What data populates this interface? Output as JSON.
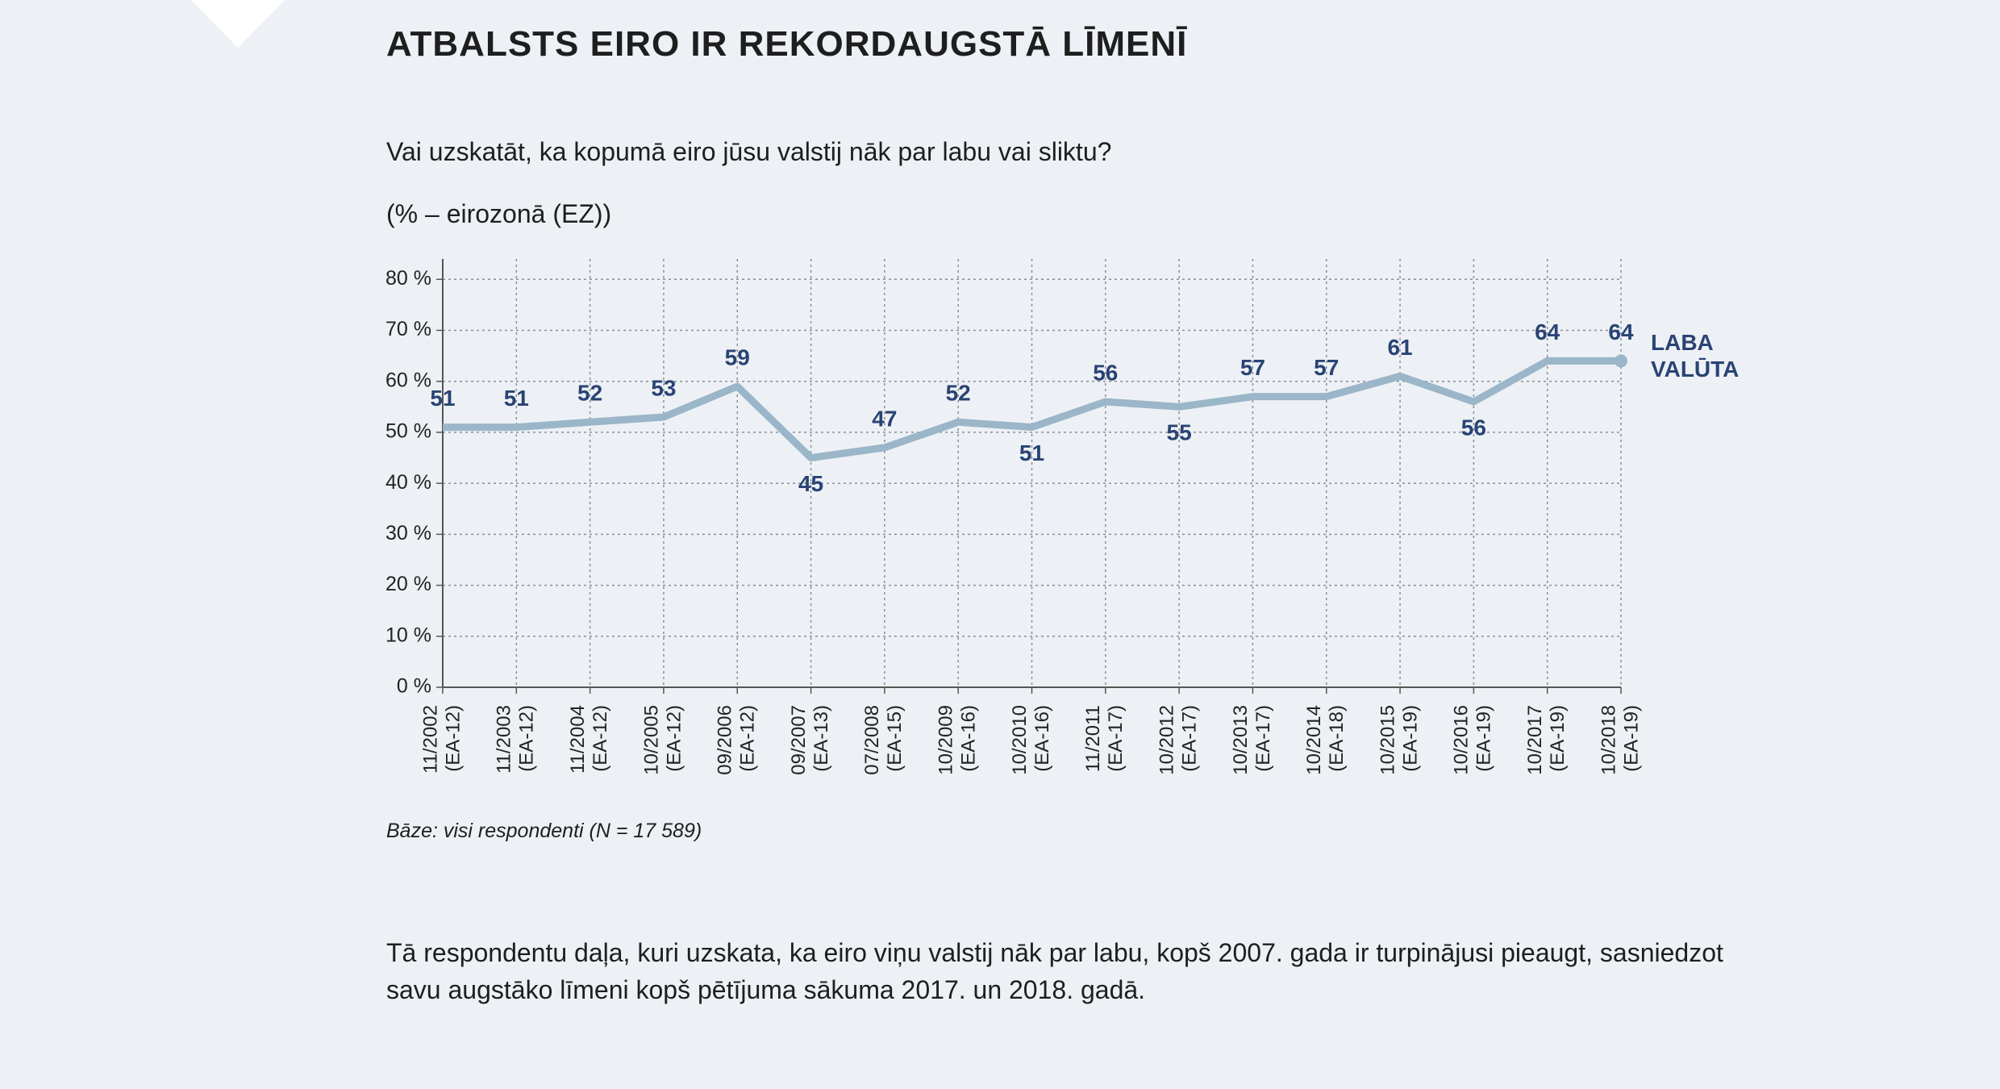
{
  "chart_data": {
    "type": "line",
    "title": "ATBALSTS EIRO IR REKORDAUGSTĀ LĪMENĪ",
    "subtitle": "Vai uzskatāt, ka kopumā eiro jūsu valstij nāk par labu vai sliktu?",
    "y_label": "(% – eirozonā (EZ))",
    "categories": [
      "11/2002",
      "11/2003",
      "11/2004",
      "10/2005",
      "09/2006",
      "09/2007",
      "07/2008",
      "10/2009",
      "10/2010",
      "11/2011",
      "10/2012",
      "10/2013",
      "10/2014",
      "10/2015",
      "10/2016",
      "10/2017",
      "10/2018"
    ],
    "category_notes": [
      "(EA-12)",
      "(EA-12)",
      "(EA-12)",
      "(EA-12)",
      "(EA-12)",
      "(EA-13)",
      "(EA-15)",
      "(EA-16)",
      "(EA-16)",
      "(EA-17)",
      "(EA-17)",
      "(EA-17)",
      "(EA-18)",
      "(EA-19)",
      "(EA-19)",
      "(EA-19)",
      "(EA-19)"
    ],
    "series": [
      {
        "name": "LABA VALŪTA",
        "color": "#9ab6c8",
        "label_color": "#2a4374",
        "values": [
          51,
          51,
          52,
          53,
          59,
          45,
          47,
          52,
          51,
          56,
          55,
          57,
          57,
          61,
          56,
          64,
          64
        ]
      }
    ],
    "ylim": [
      0,
      84
    ],
    "yticks": [
      {
        "value": 0,
        "label": "0 %"
      },
      {
        "value": 10,
        "label": "10 %"
      },
      {
        "value": 20,
        "label": "20 %"
      },
      {
        "value": 30,
        "label": "30 %"
      },
      {
        "value": 40,
        "label": "40 %"
      },
      {
        "value": 50,
        "label": "50 %"
      },
      {
        "value": 60,
        "label": "60 %"
      },
      {
        "value": 70,
        "label": "70 %"
      },
      {
        "value": 80,
        "label": "80 %"
      }
    ],
    "grid": true,
    "note": "Bāze: visi respondenti (N = 17 589)"
  },
  "body_text": "Tā respondentu daļa, kuri uzskata, ka eiro viņu valstij nāk par labu, kopš 2007. gada ir turpinājusi pieaugt, sasniedzot savu augstāko līmeni kopš pētījuma sākuma 2017. un 2018. gadā."
}
